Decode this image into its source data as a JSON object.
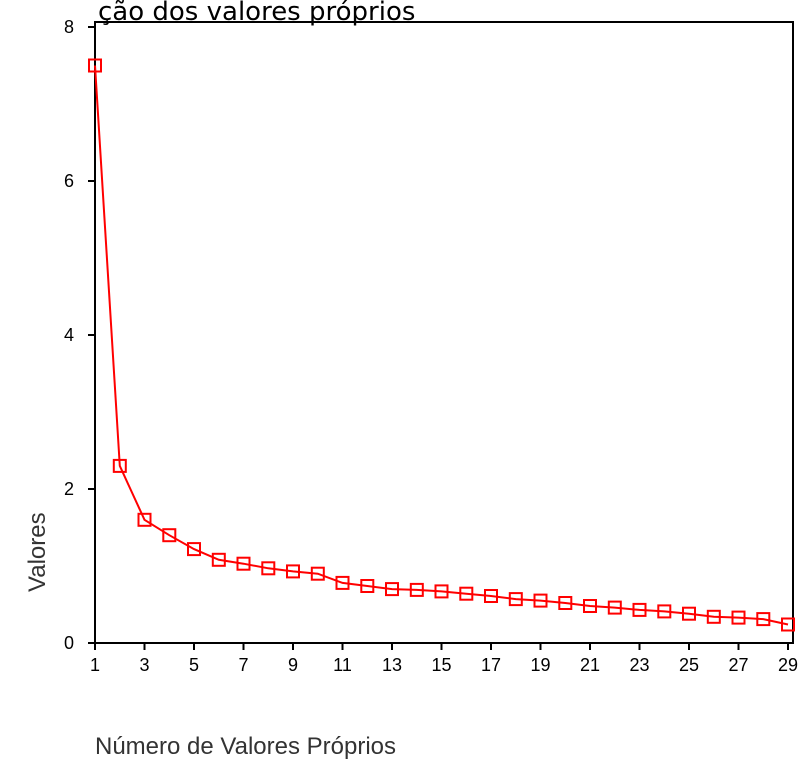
{
  "chart_data": {
    "type": "line",
    "title": "ção dos valores próprios",
    "xlabel": "Número de Valores Próprios",
    "ylabel": "Valores",
    "x": [
      1,
      2,
      3,
      4,
      5,
      6,
      7,
      8,
      9,
      10,
      11,
      12,
      13,
      14,
      15,
      16,
      17,
      18,
      19,
      20,
      21,
      22,
      23,
      24,
      25,
      26,
      27,
      28,
      29
    ],
    "xlim": [
      1,
      29
    ],
    "ylim": [
      0,
      8
    ],
    "x_ticks": [
      1,
      3,
      5,
      7,
      9,
      11,
      13,
      15,
      17,
      19,
      21,
      23,
      25,
      27,
      29
    ],
    "y_ticks": [
      0,
      2,
      4,
      6,
      8
    ],
    "series": [
      {
        "values": [
          7.5,
          2.3,
          1.6,
          1.4,
          1.22,
          1.08,
          1.03,
          0.97,
          0.93,
          0.9,
          0.78,
          0.74,
          0.7,
          0.69,
          0.67,
          0.64,
          0.61,
          0.57,
          0.55,
          0.52,
          0.48,
          0.46,
          0.43,
          0.41,
          0.38,
          0.34,
          0.33,
          0.31,
          0.24
        ],
        "color": "#ff0000",
        "marker": "square"
      }
    ],
    "grid": false,
    "legend": "none"
  }
}
